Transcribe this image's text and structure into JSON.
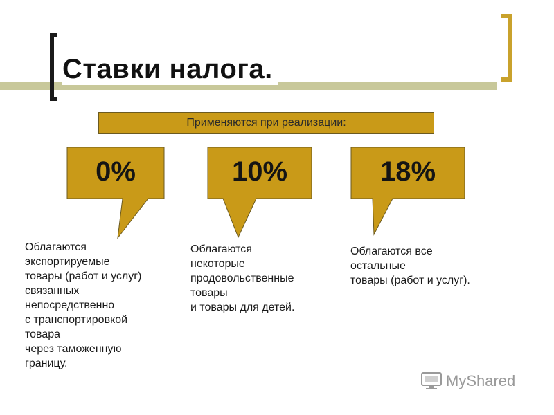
{
  "title": "Ставки налога.",
  "subtitle": "Применяются при реализации:",
  "rates": [
    {
      "label": "0%",
      "description": "Облагаются\nэкспортируемые\nтовары (работ и услуг)\nсвязанных\nнепосредственно\nс транспортировкой\nтовара\nчерез таможенную\nграницу."
    },
    {
      "label": "10%",
      "description": "Облагаются\nнекоторые\nпродовольственные\nтовары\nи товары для детей."
    },
    {
      "label": "18%",
      "description": "Облагаются все\nостальные\nтовары (работ и услуг)."
    }
  ],
  "logo": {
    "text": "MyShared",
    "icon": "monitor-icon"
  },
  "colors": {
    "accent": "#c99a18",
    "bracket": "#c9a22c",
    "stripe": "#c8c89a"
  }
}
